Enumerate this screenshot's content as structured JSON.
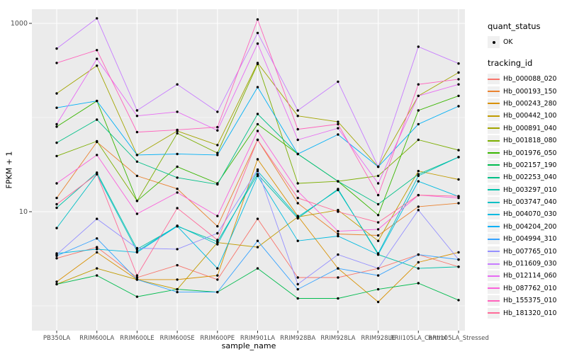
{
  "chart_data": {
    "type": "line",
    "xlabel": "sample_name",
    "ylabel": "FPKM + 1",
    "y_scale": "log10",
    "ylim": [
      0.55,
      1400
    ],
    "grid": true,
    "legend_position": "right",
    "y_ticks": [
      {
        "label": "1000",
        "value": 1000
      },
      {
        "label": "10",
        "value": 10
      }
    ],
    "y_minor_gridlines": [
      100,
      1
    ],
    "categories": [
      "PB350LA",
      "RRIM600LA",
      "RRIM600LE",
      "RRIM600SE",
      "RRIM600PE",
      "RRIM901LA",
      "RRIM928BA",
      "RRIM928LA",
      "RRIM928LE",
      "RRII105LA_Control",
      "RRII105LA_Stressed"
    ],
    "series": [
      {
        "name": "Hb_000088_020",
        "color": "#F8766D",
        "values": [
          3.2,
          4.2,
          2.0,
          2.7,
          1.9,
          8.4,
          2.0,
          2.0,
          2.5,
          3.5,
          2.6
        ]
      },
      {
        "name": "Hb_000193_150",
        "color": "#EA8331",
        "values": [
          14,
          55,
          24,
          17.5,
          7.0,
          58,
          12.3,
          5.8,
          5.6,
          11.3,
          12.3
        ]
      },
      {
        "name": "Hb_000243_280",
        "color": "#D89000",
        "values": [
          1.8,
          3.7,
          1.9,
          1.9,
          2.1,
          36,
          9.0,
          2.5,
          1.1,
          2.9,
          3.7
        ]
      },
      {
        "name": "Hb_000442_100",
        "color": "#C09B00",
        "values": [
          1.7,
          2.5,
          1.9,
          1.5,
          4.7,
          4.2,
          8.8,
          10.4,
          4.9,
          27,
          22
        ]
      },
      {
        "name": "Hb_000891_040",
        "color": "#A3A500",
        "values": [
          180,
          355,
          40,
          72,
          51,
          380,
          104,
          90,
          30,
          170,
          300
        ]
      },
      {
        "name": "Hb_001818_080",
        "color": "#7CAE00",
        "values": [
          39,
          56,
          13,
          68,
          42,
          370,
          20,
          21,
          24,
          58,
          45
        ]
      },
      {
        "name": "Hb_001976_050",
        "color": "#39B600",
        "values": [
          80,
          150,
          13,
          30,
          20,
          85,
          41,
          21,
          9.2,
          119,
          170
        ]
      },
      {
        "name": "Hb_002157_190",
        "color": "#00BB4E",
        "values": [
          1.7,
          2.1,
          1.25,
          1.5,
          1.4,
          2.5,
          1.2,
          1.2,
          1.5,
          1.74,
          1.15
        ]
      },
      {
        "name": "Hb_002253_040",
        "color": "#00C087",
        "values": [
          54,
          95,
          34,
          23,
          19.5,
          109,
          41,
          21,
          12,
          25,
          38
        ]
      },
      {
        "name": "Hb_003297_010",
        "color": "#00C1A9",
        "values": [
          11,
          26,
          4.0,
          7.0,
          4.8,
          25,
          8.5,
          17.4,
          3.5,
          2.5,
          2.6
        ]
      },
      {
        "name": "Hb_003747_040",
        "color": "#00BFC4",
        "values": [
          6.7,
          25,
          3.8,
          7.1,
          4.5,
          27,
          8.8,
          17.0,
          3.6,
          24,
          38
        ]
      },
      {
        "name": "Hb_004070_030",
        "color": "#00BAE0",
        "values": [
          3.6,
          4.0,
          3.7,
          7.0,
          2.5,
          24,
          4.9,
          5.5,
          3.5,
          21,
          14.5
        ]
      },
      {
        "name": "Hb_004204_200",
        "color": "#00B0F6",
        "values": [
          127,
          150,
          40,
          41,
          40,
          210,
          41,
          66,
          30,
          85,
          132
        ]
      },
      {
        "name": "Hb_004994_310",
        "color": "#35A2FF",
        "values": [
          3.4,
          5.2,
          1.9,
          1.4,
          1.4,
          4.9,
          1.5,
          2.5,
          2.1,
          3.5,
          3.1
        ]
      },
      {
        "name": "Hb_007765_010",
        "color": "#9590FF",
        "values": [
          3.5,
          8.4,
          4.1,
          4.0,
          5.9,
          28,
          1.7,
          3.5,
          2.5,
          10.4,
          3.1
        ]
      },
      {
        "name": "Hb_011609_030",
        "color": "#C77CFF",
        "values": [
          540,
          1130,
          119,
          225,
          115,
          790,
          119,
          240,
          30,
          565,
          375
        ]
      },
      {
        "name": "Hb_012114_060",
        "color": "#E76BF3",
        "values": [
          85,
          420,
          104,
          115,
          73,
          610,
          58,
          77,
          20,
          170,
          225
        ]
      },
      {
        "name": "Hb_087762_010",
        "color": "#FA62DB",
        "values": [
          20,
          40,
          9.5,
          16,
          9.0,
          72,
          16.5,
          6.2,
          6.5,
          15,
          14
        ]
      },
      {
        "name": "Hb_155375_010",
        "color": "#FF62BC",
        "values": [
          380,
          520,
          70,
          74,
          79,
          1100,
          75,
          85,
          15,
          225,
          255
        ]
      },
      {
        "name": "Hb_181320_010",
        "color": "#FF6A98",
        "values": [
          12,
          25,
          2.1,
          10.9,
          5.0,
          58,
          14,
          10,
          7.7,
          15,
          14.6
        ]
      }
    ],
    "legend": {
      "quant_status_title": "quant_status",
      "quant_status_items": [
        {
          "label": "OK",
          "marker": "point"
        }
      ],
      "tracking_id_title": "tracking_id"
    },
    "colors": {
      "panel_bg": "#EBEBEB",
      "grid": "#FFFFFF",
      "axis_text": "#4D4D4D",
      "tick": "#333333",
      "point": "#000000",
      "legend_key_bg": "#F0F0F0"
    }
  }
}
